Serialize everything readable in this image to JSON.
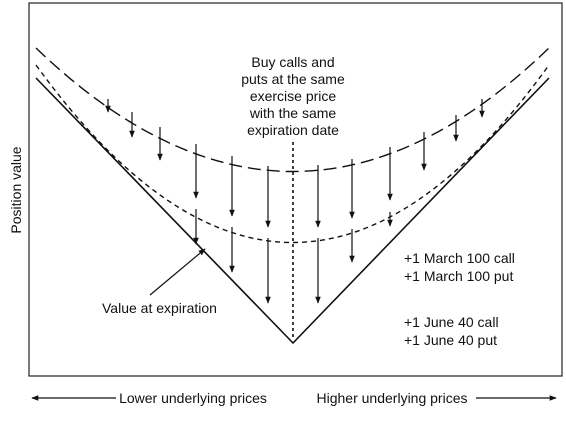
{
  "y_axis_label": "Position value",
  "center_note": [
    "Buy calls and",
    "puts at the same",
    "exercise price",
    "with the same",
    "expiration date"
  ],
  "expiration_label": "Value at expiration",
  "position_group_1": [
    "+1 March 100 call",
    "+1 March 100 put"
  ],
  "position_group_2": [
    "+1 June 40 call",
    "+1 June 40 put"
  ],
  "x_left_label": "Lower underlying prices",
  "x_right_label": "Higher underlying prices"
}
